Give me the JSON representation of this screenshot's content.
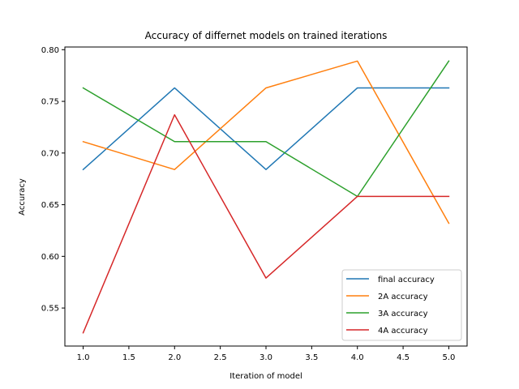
{
  "chart_data": {
    "type": "line",
    "title": "Accuracy of differnet models on trained iterations",
    "xlabel": "Iteration of model",
    "ylabel": "Accuracy",
    "x": [
      1,
      2,
      3,
      4,
      5
    ],
    "xlim": [
      0.8,
      5.2
    ],
    "ylim": [
      0.5132,
      0.8026
    ],
    "xticks": [
      "1.0",
      "1.5",
      "2.0",
      "2.5",
      "3.0",
      "3.5",
      "4.0",
      "4.5",
      "5.0"
    ],
    "yticks": [
      "0.55",
      "0.60",
      "0.65",
      "0.70",
      "0.75",
      "0.80"
    ],
    "grid": false,
    "legend_position": "lower-right",
    "series": [
      {
        "name": "final accuracy",
        "color": "#1f77b4",
        "values": [
          0.684,
          0.763,
          0.684,
          0.763,
          0.763
        ]
      },
      {
        "name": "2A accuracy",
        "color": "#ff7f0e",
        "values": [
          0.711,
          0.684,
          0.763,
          0.789,
          0.632
        ]
      },
      {
        "name": "3A accuracy",
        "color": "#2ca02c",
        "values": [
          0.763,
          0.711,
          0.711,
          0.658,
          0.789
        ]
      },
      {
        "name": "4A accuracy",
        "color": "#d62728",
        "values": [
          0.526,
          0.737,
          0.579,
          0.658,
          0.658
        ]
      }
    ]
  }
}
